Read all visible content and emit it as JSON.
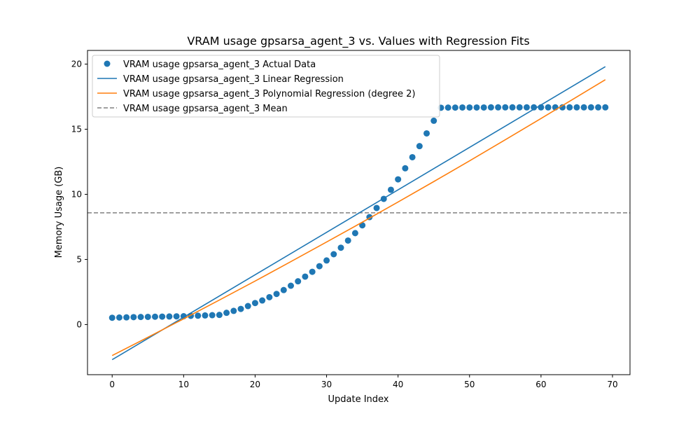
{
  "chart_data": {
    "type": "scatter",
    "title": "VRAM usage gpsarsa_agent_3 vs. Values with Regression Fits",
    "xlabel": "Update Index",
    "ylabel": "Memory Usage (GB)",
    "xlim": [
      -3.45,
      72.45
    ],
    "ylim": [
      -3.85,
      21.05
    ],
    "xticks": [
      0,
      10,
      20,
      30,
      40,
      50,
      60,
      70
    ],
    "yticks": [
      0,
      5,
      10,
      15,
      20
    ],
    "grid": false,
    "legend_position": "upper-left",
    "colors": {
      "data": "#1f77b4",
      "linear": "#1f77b4",
      "poly": "#ff7f0e",
      "mean": "#808080"
    },
    "series": [
      {
        "name": "VRAM usage gpsarsa_agent_3 Actual Data",
        "style": "markers",
        "x": [
          0,
          1,
          2,
          3,
          4,
          5,
          6,
          7,
          8,
          9,
          10,
          11,
          12,
          13,
          14,
          15,
          16,
          17,
          18,
          19,
          20,
          21,
          22,
          23,
          24,
          25,
          26,
          27,
          28,
          29,
          30,
          31,
          32,
          33,
          34,
          35,
          36,
          37,
          38,
          39,
          40,
          41,
          42,
          43,
          44,
          45,
          46,
          47,
          48,
          49,
          50,
          51,
          52,
          53,
          54,
          55,
          56,
          57,
          58,
          59,
          60,
          61,
          62,
          63,
          64,
          65,
          66,
          67,
          68,
          69
        ],
        "y": [
          0.52,
          0.54,
          0.55,
          0.57,
          0.58,
          0.59,
          0.6,
          0.61,
          0.62,
          0.63,
          0.64,
          0.67,
          0.68,
          0.7,
          0.72,
          0.74,
          0.9,
          1.05,
          1.2,
          1.42,
          1.65,
          1.85,
          2.1,
          2.35,
          2.65,
          2.98,
          3.32,
          3.68,
          4.05,
          4.48,
          4.92,
          5.4,
          5.9,
          6.45,
          7.02,
          7.62,
          8.25,
          8.95,
          9.65,
          10.35,
          11.15,
          12.0,
          12.85,
          13.7,
          14.68,
          15.65,
          16.65,
          16.66,
          16.66,
          16.67,
          16.67,
          16.67,
          16.67,
          16.68,
          16.68,
          16.68,
          16.68,
          16.68,
          16.68,
          16.68,
          16.68,
          16.68,
          16.68,
          16.68,
          16.68,
          16.68,
          16.68,
          16.68,
          16.68,
          16.68
        ]
      },
      {
        "name": "VRAM usage gpsarsa_agent_3 Linear Regression",
        "style": "line",
        "x": [
          0,
          69
        ],
        "y": [
          -2.7,
          19.8
        ]
      },
      {
        "name": "VRAM usage gpsarsa_agent_3 Polynomial Regression (degree 2)",
        "style": "line",
        "x": [
          0,
          5,
          10,
          15,
          20,
          25,
          30,
          35,
          40,
          45,
          50,
          55,
          60,
          65,
          69
        ],
        "y": [
          -2.38,
          -0.98,
          0.44,
          1.88,
          3.34,
          4.83,
          6.34,
          7.86,
          9.41,
          10.98,
          12.57,
          14.19,
          15.82,
          17.48,
          18.8
        ]
      },
      {
        "name": "VRAM usage gpsarsa_agent_3 Mean",
        "style": "dashed-hline",
        "y": 8.58
      }
    ]
  }
}
